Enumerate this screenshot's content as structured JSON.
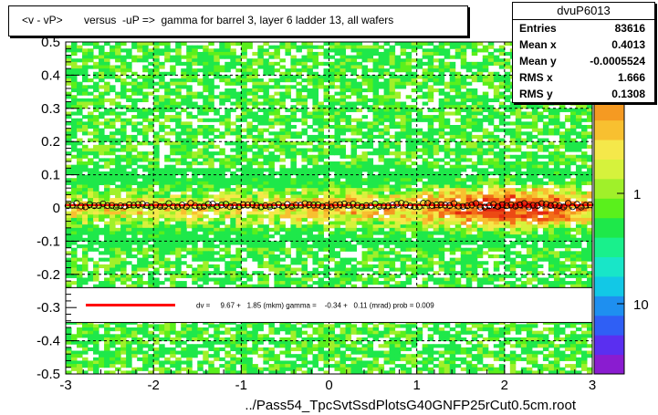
{
  "title": "<v - vP>       versus  -uP =>  gamma for barrel 3, layer 6 ladder 13, all wafers",
  "stats": {
    "name": "dvuP6013",
    "rows": [
      {
        "key": "Entries",
        "value": "83616"
      },
      {
        "key": "Mean x",
        "value": "0.4013"
      },
      {
        "key": "Mean y",
        "value": "-0.0005524"
      },
      {
        "key": "RMS x",
        "value": "1.666"
      },
      {
        "key": "RMS y",
        "value": "0.1308"
      }
    ]
  },
  "colors": {
    "fit_line": "#ff0000",
    "marker": "#000000",
    "palette": [
      "#8a1cd0",
      "#5a2ff0",
      "#2f5ff5",
      "#1e8ff0",
      "#12c8e6",
      "#18e6c8",
      "#19f08c",
      "#1ee84a",
      "#5af01c",
      "#a0f02a",
      "#d6f23c",
      "#f5e84a",
      "#f8c030",
      "#f59a22",
      "#f26e18",
      "#ec4a14",
      "#e42810"
    ]
  },
  "chart_data": {
    "type": "heatmap",
    "xlabel": "../Pass54_TpcSvtSsdPlotsG40GNFP25rCut0.5cm.root",
    "ylabel": "",
    "xlim": [
      -3,
      3
    ],
    "ylim": [
      -0.5,
      0.5
    ],
    "x_ticks": [
      -3,
      -2,
      -1,
      0,
      1,
      2,
      3
    ],
    "y_ticks": [
      -0.5,
      -0.4,
      -0.3,
      -0.2,
      -0.1,
      0,
      0.1,
      0.2,
      0.3,
      0.4,
      0.5
    ],
    "grid": true,
    "profile_y": 0.0085,
    "z_axis": {
      "scale": "log",
      "labels": [
        "10",
        "1",
        "10"
      ],
      "label_positions": [
        0.4,
        1,
        0.1
      ]
    },
    "legend": {
      "label": "dv =     9.67 +   1.85 (mkm) gamma =    -0.34 +   0.11 (mrad) prob = 0.009",
      "yrange": [
        -0.345,
        -0.24
      ]
    }
  }
}
